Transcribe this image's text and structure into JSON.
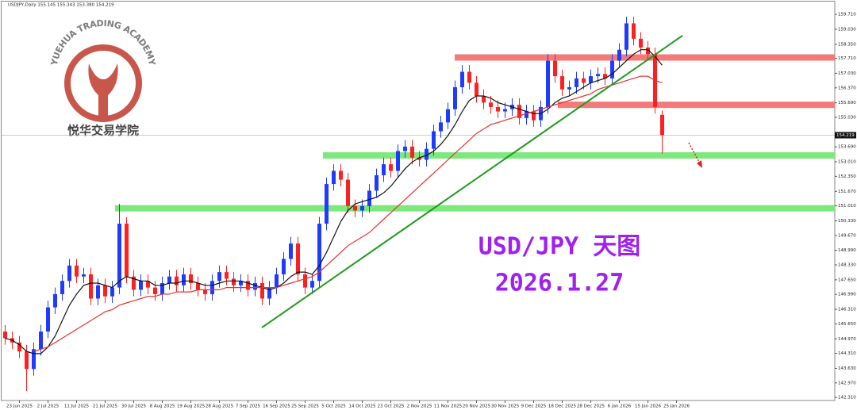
{
  "header": "USDJPY,Daily  155.145 155.343 153.380 154.219",
  "logo": {
    "top": "YUEHUA TRADING ACADEMY",
    "bottom": "悦华交易学院"
  },
  "chart_data": {
    "type": "candlestick",
    "annotations": [
      "USD/JPY 天图",
      "2026.1.27"
    ],
    "up_color": "#1f3bff",
    "down_color": "#ff1f1f",
    "categories": [
      null,
      null,
      "23 Jun 2025",
      null,
      null,
      null,
      "2 Jul 2025",
      null,
      null,
      null,
      "11 Jul 2025",
      null,
      null,
      null,
      "21 Jul 2025",
      null,
      null,
      null,
      "30 Jul 2025",
      null,
      null,
      null,
      "8 Aug 2025",
      null,
      null,
      null,
      "19 Aug 2025",
      null,
      null,
      null,
      "28 Aug 2025",
      null,
      null,
      null,
      "7 Sep 2025",
      null,
      null,
      null,
      "16 Sep 2025",
      null,
      null,
      null,
      "25 Sep 2025",
      null,
      null,
      null,
      "5 Oct 2025",
      null,
      null,
      null,
      "14 Oct 2025",
      null,
      null,
      null,
      "23 Oct 2025",
      null,
      null,
      null,
      "2 Nov 2025",
      null,
      null,
      null,
      "11 Nov 2025",
      null,
      null,
      null,
      "20 Nov 2025",
      null,
      null,
      null,
      "30 Nov 2025",
      null,
      null,
      null,
      "9 Dec 2025",
      null,
      null,
      null,
      "18 Dec 2025",
      null,
      null,
      null,
      "28 Dec 2025",
      null,
      null,
      null,
      "6 Jan 2026",
      null,
      null,
      null,
      "15 Jan 2026",
      null,
      null,
      null,
      "25 Jan 2026"
    ],
    "open": [
      145.3,
      145.0,
      144.8,
      144.4,
      143.6,
      144.5,
      145.3,
      146.4,
      147.0,
      147.6,
      148.3,
      147.8,
      147.9,
      146.8,
      147.4,
      146.9,
      147.3,
      150.2,
      147.8,
      147.2,
      147.6,
      147.3,
      147.0,
      147.5,
      147.8,
      147.4,
      147.9,
      147.5,
      147.2,
      147.0,
      147.6,
      148.0,
      147.7,
      147.4,
      147.6,
      147.2,
      147.5,
      146.8,
      147.3,
      147.9,
      148.6,
      149.3,
      147.9,
      147.3,
      147.6,
      150.2,
      152.0,
      152.6,
      152.2,
      151.0,
      150.8,
      151.0,
      151.7,
      152.4,
      152.9,
      152.6,
      153.5,
      153.7,
      153.2,
      153.1,
      153.6,
      154.4,
      154.8,
      155.4,
      156.4,
      157.1,
      156.6,
      156.0,
      155.7,
      155.5,
      155.3,
      155.4,
      155.6,
      155.0,
      155.3,
      154.9,
      155.5,
      157.6,
      156.9,
      156.3,
      156.4,
      156.8,
      156.6,
      156.9,
      157.0,
      156.8,
      157.6,
      158.1,
      159.3,
      158.6,
      158.2,
      157.9,
      155.145,
      null,
      null
    ],
    "high": [
      145.6,
      145.3,
      145.1,
      144.7,
      144.8,
      145.6,
      146.7,
      147.3,
      147.9,
      148.6,
      148.6,
      148.2,
      148.2,
      147.7,
      147.7,
      147.6,
      151.1,
      150.5,
      148.1,
      147.9,
      147.9,
      147.6,
      147.8,
      148.1,
      148.1,
      148.2,
      148.2,
      147.8,
      147.5,
      147.9,
      148.3,
      148.3,
      148.0,
      147.9,
      147.9,
      147.8,
      147.8,
      147.6,
      148.2,
      148.9,
      149.6,
      149.6,
      148.2,
      147.9,
      150.5,
      152.3,
      152.9,
      152.9,
      152.5,
      151.3,
      151.3,
      152.0,
      152.7,
      153.2,
      153.2,
      153.8,
      154.0,
      154.0,
      153.5,
      153.9,
      154.7,
      155.1,
      155.7,
      156.7,
      157.4,
      157.4,
      156.9,
      156.3,
      156.0,
      155.8,
      155.7,
      155.9,
      155.9,
      155.6,
      155.6,
      155.8,
      157.9,
      157.9,
      157.2,
      156.7,
      157.1,
      157.1,
      157.2,
      157.3,
      157.3,
      157.9,
      158.4,
      159.6,
      159.6,
      158.9,
      158.5,
      158.2,
      155.343,
      null,
      null
    ],
    "low": [
      144.7,
      144.5,
      144.1,
      142.6,
      143.3,
      144.2,
      145.0,
      146.1,
      146.7,
      147.3,
      147.5,
      147.5,
      146.5,
      146.5,
      146.6,
      146.6,
      147.0,
      147.5,
      146.9,
      146.9,
      147.0,
      146.7,
      146.7,
      147.2,
      147.1,
      147.1,
      147.2,
      146.9,
      146.7,
      146.7,
      147.3,
      147.4,
      147.1,
      147.1,
      146.9,
      146.9,
      146.5,
      146.5,
      147.0,
      147.6,
      148.3,
      147.6,
      147.0,
      147.0,
      147.3,
      149.9,
      151.7,
      151.9,
      150.7,
      150.5,
      150.5,
      150.7,
      151.4,
      152.1,
      152.3,
      152.3,
      153.2,
      152.9,
      152.8,
      152.8,
      153.3,
      154.1,
      154.5,
      155.1,
      156.1,
      156.3,
      155.7,
      155.4,
      155.2,
      155.0,
      155.0,
      155.1,
      154.7,
      154.7,
      154.6,
      154.6,
      155.2,
      156.6,
      156.0,
      156.0,
      156.1,
      156.3,
      156.3,
      156.6,
      156.5,
      156.5,
      157.3,
      157.8,
      158.3,
      157.9,
      157.6,
      155.2,
      153.38,
      null,
      null
    ],
    "close": [
      145.0,
      144.8,
      144.4,
      143.6,
      144.5,
      145.3,
      146.4,
      147.0,
      147.6,
      148.3,
      147.8,
      147.9,
      146.8,
      147.4,
      146.9,
      147.3,
      150.2,
      147.8,
      147.2,
      147.6,
      147.3,
      147.0,
      147.5,
      147.8,
      147.4,
      147.9,
      147.5,
      147.2,
      147.0,
      147.6,
      148.0,
      147.7,
      147.4,
      147.6,
      147.2,
      147.5,
      146.8,
      147.3,
      147.9,
      148.6,
      149.3,
      147.9,
      147.3,
      147.6,
      150.2,
      152.0,
      152.6,
      152.2,
      151.0,
      150.8,
      151.0,
      151.7,
      152.4,
      152.9,
      152.6,
      153.5,
      153.7,
      153.2,
      153.1,
      153.6,
      154.4,
      154.8,
      155.4,
      156.4,
      157.1,
      156.6,
      156.0,
      155.7,
      155.5,
      155.3,
      155.4,
      155.6,
      155.0,
      155.3,
      154.9,
      155.5,
      157.6,
      156.9,
      156.3,
      156.4,
      156.8,
      156.6,
      156.9,
      157.0,
      156.8,
      157.6,
      158.1,
      159.3,
      158.6,
      158.2,
      157.9,
      155.5,
      154.219,
      null,
      null
    ],
    "series": [
      {
        "color": "#111111",
        "values": [
          145.0,
          144.9,
          144.7,
          144.4,
          144.3,
          144.3,
          144.6,
          145.1,
          145.8,
          146.5,
          147.0,
          147.4,
          147.5,
          147.5,
          147.4,
          147.3,
          147.6,
          147.8,
          147.7,
          147.6,
          147.6,
          147.4,
          147.4,
          147.5,
          147.5,
          147.6,
          147.6,
          147.5,
          147.4,
          147.4,
          147.5,
          147.6,
          147.6,
          147.6,
          147.5,
          147.4,
          147.3,
          147.2,
          147.3,
          147.5,
          147.8,
          148.0,
          148.0,
          147.9,
          148.3,
          148.9,
          149.6,
          150.3,
          150.8,
          151.1,
          151.2,
          151.3,
          151.4,
          151.6,
          151.9,
          152.3,
          152.7,
          153.0,
          153.2,
          153.3,
          153.5,
          153.8,
          154.2,
          154.7,
          155.3,
          155.8,
          156.0,
          156.0,
          155.9,
          155.7,
          155.6,
          155.5,
          155.4,
          155.3,
          155.2,
          155.2,
          155.4,
          155.7,
          155.9,
          156.0,
          156.2,
          156.4,
          156.6,
          156.7,
          156.8,
          157.0,
          157.3,
          157.6,
          157.9,
          158.1,
          158.1,
          157.8,
          157.4,
          null,
          null
        ]
      },
      {
        "color": "#e8322c",
        "values": [
          null,
          null,
          null,
          null,
          144.4,
          144.5,
          144.6,
          144.8,
          145.0,
          145.2,
          145.4,
          145.6,
          145.8,
          146.0,
          146.2,
          146.3,
          146.5,
          146.6,
          146.7,
          146.8,
          146.9,
          146.9,
          147.0,
          147.0,
          147.1,
          147.1,
          147.1,
          147.2,
          147.2,
          147.2,
          147.2,
          147.3,
          147.3,
          147.3,
          147.3,
          147.3,
          147.3,
          147.3,
          147.3,
          147.4,
          147.5,
          147.6,
          147.7,
          147.8,
          148.0,
          148.3,
          148.6,
          148.9,
          149.2,
          149.4,
          149.6,
          149.8,
          150.1,
          150.4,
          150.7,
          151.0,
          151.3,
          151.6,
          151.9,
          152.2,
          152.5,
          152.8,
          153.1,
          153.4,
          153.7,
          154.0,
          154.3,
          154.5,
          154.7,
          154.8,
          154.9,
          155.0,
          155.1,
          155.2,
          155.3,
          155.4,
          155.5,
          155.6,
          155.7,
          155.8,
          155.9,
          156.0,
          156.1,
          156.3,
          156.4,
          156.5,
          156.6,
          156.7,
          156.8,
          156.9,
          156.9,
          156.7,
          156.6,
          null,
          null
        ]
      }
    ],
    "levels": [
      {
        "value": 157.75,
        "color": "#f47a7a"
      },
      {
        "value": 155.6,
        "color": "#f47a7a"
      },
      {
        "value": 153.3,
        "color": "#7ee87e"
      },
      {
        "value": 150.9,
        "color": "#7ee87e"
      }
    ],
    "trendline": {
      "from": 145.48,
      "to": 158.74,
      "color": "#1e9a1e"
    },
    "last_price": {
      "value": 154.219,
      "label": "154.219"
    },
    "ylim": [
      142.17,
      160.18
    ],
    "yticks": [
      {
        "value": 159.71,
        "label": "159.710"
      },
      {
        "value": 159.03,
        "label": "159.030"
      },
      {
        "value": 158.35,
        "label": "158.350"
      },
      {
        "value": 157.71,
        "label": "157.710"
      },
      {
        "value": 157.03,
        "label": "157.030"
      },
      {
        "value": 156.37,
        "label": "156.370"
      },
      {
        "value": 155.69,
        "label": "155.690"
      },
      {
        "value": 155.03,
        "label": "155.030"
      },
      {
        "value": 153.69,
        "label": "153.690"
      },
      {
        "value": 153.01,
        "label": "153.010"
      },
      {
        "value": 152.35,
        "label": "152.350"
      },
      {
        "value": 151.67,
        "label": "151.670"
      },
      {
        "value": 151.01,
        "label": "151.010"
      },
      {
        "value": 150.33,
        "label": "150.330"
      },
      {
        "value": 149.67,
        "label": "149.670"
      },
      {
        "value": 148.99,
        "label": "148.990"
      },
      {
        "value": 148.33,
        "label": "148.330"
      },
      {
        "value": 147.65,
        "label": "147.650"
      },
      {
        "value": 146.99,
        "label": "146.990"
      },
      {
        "value": 146.31,
        "label": "146.310"
      },
      {
        "value": 145.65,
        "label": "145.650"
      },
      {
        "value": 144.97,
        "label": "144.970"
      },
      {
        "value": 144.31,
        "label": "144.310"
      },
      {
        "value": 143.63,
        "label": "143.630"
      },
      {
        "value": 142.97,
        "label": "142.970"
      },
      {
        "value": 142.31,
        "label": "142.310"
      }
    ]
  }
}
